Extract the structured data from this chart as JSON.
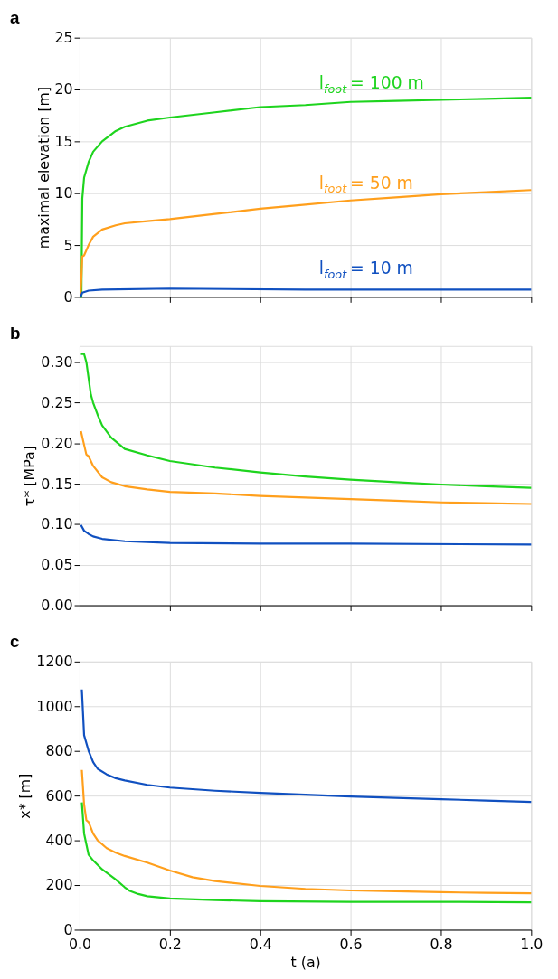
{
  "chart_data": [
    {
      "type": "line",
      "title": "a",
      "ylabel": "maximal elevation [m]",
      "xlim": [
        0,
        1
      ],
      "ylim": [
        0,
        25
      ],
      "xticks": [
        0,
        0.2,
        0.4,
        0.6,
        0.8,
        1
      ],
      "yticks": [
        0,
        5,
        10,
        15,
        20,
        25
      ],
      "grid": true,
      "tick_labels": "y",
      "marker": "none",
      "line_style": "solid",
      "series": [
        {
          "name": "l$_{foot}$ = 100 m",
          "color": "#1ed41e",
          "x": [
            0,
            0.004,
            0.006,
            0.01,
            0.02,
            0.03,
            0.05,
            0.08,
            0.1,
            0.15,
            0.2,
            0.3,
            0.4,
            0.5,
            0.6,
            0.7,
            0.8,
            0.9,
            1.0
          ],
          "values": [
            0,
            0,
            9.5,
            11.5,
            13,
            14,
            15,
            16,
            16.4,
            17,
            17.3,
            17.8,
            18.3,
            18.5,
            18.8,
            18.9,
            19,
            19.1,
            19.2
          ]
        },
        {
          "name": "l$_{foot}$ = 50 m",
          "color": "#ff9f1c",
          "x": [
            0.002,
            0.006,
            0.01,
            0.02,
            0.03,
            0.05,
            0.08,
            0.1,
            0.15,
            0.2,
            0.3,
            0.4,
            0.5,
            0.6,
            0.7,
            0.8,
            0.9,
            1.0
          ],
          "values": [
            0,
            3.9,
            4,
            5,
            5.8,
            6.5,
            6.9,
            7.1,
            7.3,
            7.5,
            8,
            8.5,
            8.9,
            9.3,
            9.6,
            9.9,
            10.1,
            10.3
          ]
        },
        {
          "name": "l$_{foot}$ = 10 m",
          "color": "#1050c0",
          "x": [
            0.002,
            0.006,
            0.02,
            0.05,
            0.2,
            0.5,
            1.0
          ],
          "values": [
            0,
            0.4,
            0.6,
            0.7,
            0.8,
            0.7,
            0.7
          ]
        }
      ]
    },
    {
      "type": "line",
      "title": "b",
      "ylabel": "τ* [MPa]",
      "xlim": [
        0,
        1
      ],
      "ylim": [
        0,
        0.32
      ],
      "xticks": [
        0,
        0.2,
        0.4,
        0.6,
        0.8,
        1
      ],
      "yticks": [
        {
          "value": 0,
          "label": "0.00"
        },
        0.05,
        {
          "value": 0.1,
          "label": "0.10"
        },
        0.15,
        {
          "value": 0.2,
          "label": "0.20"
        },
        0.25,
        {
          "value": 0.3,
          "label": "0.30"
        }
      ],
      "grid": true,
      "tick_labels": "y",
      "marker": "none",
      "line_style": "solid",
      "series": [
        {
          "color": "#1ed41e",
          "x": [
            0.003,
            0.01,
            0.015,
            0.02,
            0.025,
            0.03,
            0.04,
            0.05,
            0.07,
            0.1,
            0.15,
            0.2,
            0.3,
            0.4,
            0.5,
            0.6,
            0.7,
            0.8,
            0.9,
            1.0
          ],
          "values": [
            0.31,
            0.31,
            0.3,
            0.28,
            0.26,
            0.25,
            0.235,
            0.222,
            0.207,
            0.193,
            0.185,
            0.178,
            0.17,
            0.164,
            0.159,
            0.155,
            0.152,
            0.149,
            0.147,
            0.145
          ]
        },
        {
          "color": "#ff9f1c",
          "x": [
            0.003,
            0.01,
            0.015,
            0.02,
            0.03,
            0.05,
            0.07,
            0.1,
            0.15,
            0.2,
            0.3,
            0.4,
            0.5,
            0.6,
            0.7,
            0.8,
            0.9,
            1.0
          ],
          "values": [
            0.215,
            0.198,
            0.186,
            0.184,
            0.172,
            0.158,
            0.152,
            0.147,
            0.143,
            0.14,
            0.138,
            0.135,
            0.133,
            0.131,
            0.129,
            0.127,
            0.126,
            0.125
          ]
        },
        {
          "color": "#1050c0",
          "x": [
            0.003,
            0.01,
            0.02,
            0.03,
            0.05,
            0.1,
            0.2,
            0.4,
            0.6,
            1.0
          ],
          "values": [
            0.099,
            0.092,
            0.088,
            0.085,
            0.082,
            0.079,
            0.077,
            0.076,
            0.076,
            0.075
          ]
        }
      ]
    },
    {
      "type": "line",
      "title": "c",
      "xlabel": "t (a)",
      "ylabel": "x* [m]",
      "xlim": [
        0,
        1
      ],
      "ylim": [
        0,
        1200
      ],
      "xticks": [
        {
          "value": 0,
          "label": "0.0"
        },
        0.2,
        0.4,
        0.6,
        0.8,
        {
          "value": 1,
          "label": "1.0"
        }
      ],
      "yticks": [
        0,
        200,
        400,
        600,
        800,
        1000,
        1200
      ],
      "grid": true,
      "marker": "none",
      "line_style": "solid",
      "series": [
        {
          "color": "#1050c0",
          "x": [
            0.005,
            0.01,
            0.02,
            0.03,
            0.04,
            0.06,
            0.08,
            0.1,
            0.15,
            0.2,
            0.3,
            0.4,
            0.5,
            0.6,
            0.7,
            0.8,
            0.9,
            1.0
          ],
          "values": [
            1075,
            870,
            800,
            750,
            720,
            695,
            678,
            668,
            648,
            636,
            622,
            612,
            604,
            596,
            590,
            584,
            578,
            572
          ]
        },
        {
          "color": "#ff9f1c",
          "x": [
            0.005,
            0.01,
            0.015,
            0.02,
            0.03,
            0.04,
            0.06,
            0.08,
            0.1,
            0.15,
            0.2,
            0.25,
            0.3,
            0.4,
            0.5,
            0.6,
            0.7,
            0.8,
            0.9,
            1.0
          ],
          "values": [
            715,
            560,
            490,
            482,
            430,
            400,
            365,
            345,
            330,
            300,
            265,
            235,
            218,
            196,
            183,
            176,
            172,
            168,
            165,
            163
          ]
        },
        {
          "color": "#1ed41e",
          "x": [
            0.005,
            0.01,
            0.02,
            0.03,
            0.05,
            0.08,
            0.1,
            0.11,
            0.13,
            0.15,
            0.2,
            0.3,
            0.4,
            0.6,
            0.8,
            1.0
          ],
          "values": [
            570,
            430,
            335,
            310,
            270,
            225,
            190,
            175,
            160,
            150,
            140,
            133,
            128,
            125,
            125,
            123
          ]
        }
      ]
    }
  ]
}
